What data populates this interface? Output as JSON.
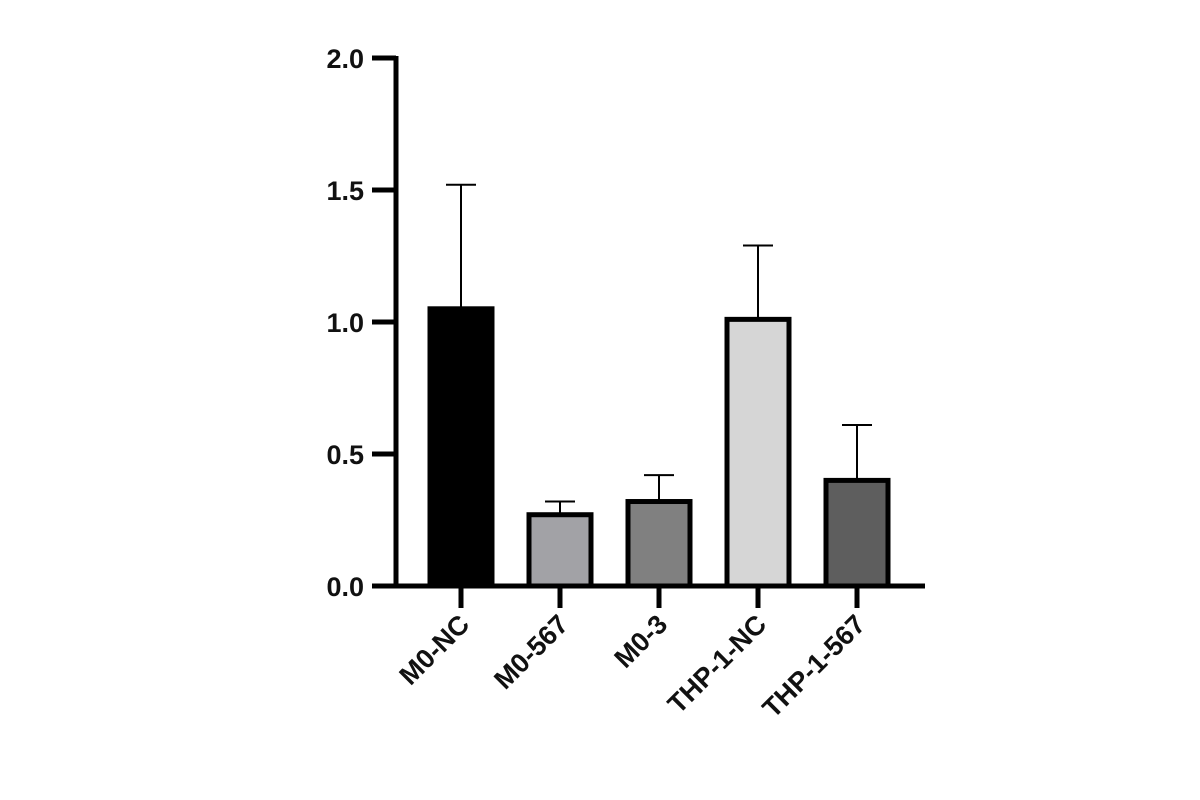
{
  "chart_data": {
    "type": "bar",
    "categories": [
      "M0-NC",
      "M0-567",
      "M0-3",
      "THP-1-NC",
      "THP-1-567"
    ],
    "values": [
      1.05,
      0.27,
      0.32,
      1.01,
      0.4
    ],
    "errors": [
      0.47,
      0.05,
      0.1,
      0.28,
      0.21
    ],
    "colors": [
      "#000000",
      "#a2a2a6",
      "#808080",
      "#d6d6d6",
      "#5e5e5e"
    ],
    "ylim": [
      0,
      2
    ],
    "yticks": [
      {
        "value": 0,
        "label": "0.0"
      },
      {
        "value": 0.5,
        "label": "0.5"
      },
      {
        "value": 1,
        "label": "1.0"
      },
      {
        "value": 1.5,
        "label": "1.5"
      },
      {
        "value": 2,
        "label": "2.0"
      }
    ]
  }
}
